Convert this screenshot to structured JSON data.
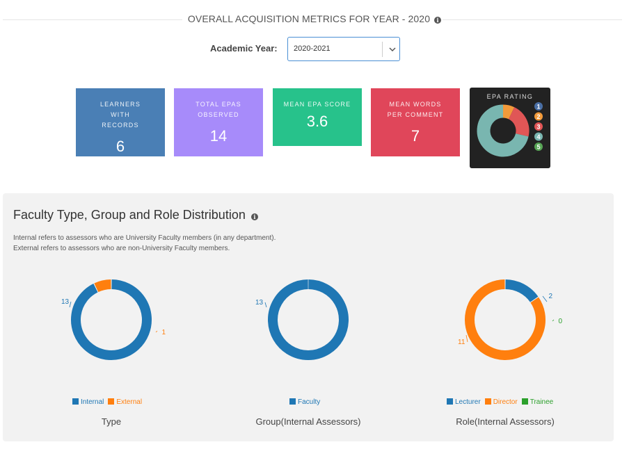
{
  "header": {
    "title": "OVERALL ACQUISITION METRICS FOR YEAR - 2020",
    "info_icon": "info-icon"
  },
  "year_selector": {
    "label": "Academic Year:",
    "value": "2020-2021"
  },
  "cards": [
    {
      "label": "LEARNERS WITH RECORDS",
      "value": "6",
      "color": "#4a7fb5"
    },
    {
      "label": "TOTAL EPAS OBSERVED",
      "value": "14",
      "color": "#a78bfa"
    },
    {
      "label": "MEAN EPA SCORE",
      "value": "3.6",
      "color": "#27c28b"
    },
    {
      "label": "MEAN WORDS PER COMMENT",
      "value": "7",
      "color": "#e0465a"
    }
  ],
  "epa_rating": {
    "title": "EPA RATING",
    "legend": [
      {
        "label": "1",
        "color": "#4a6fa5"
      },
      {
        "label": "2",
        "color": "#f29a3a"
      },
      {
        "label": "3",
        "color": "#e05656"
      },
      {
        "label": "4",
        "color": "#79b6b0"
      },
      {
        "label": "5",
        "color": "#58a556"
      }
    ],
    "chart_data": {
      "type": "pie",
      "categories": [
        "1",
        "2",
        "3",
        "4",
        "5"
      ],
      "values": [
        0,
        1,
        3,
        10,
        0
      ]
    }
  },
  "distribution": {
    "title": "Faculty Type, Group and Role Distribution",
    "desc_line1": "Internal refers to assessors who are University Faculty members (in any department).",
    "desc_line2": "External refers to assessors who are non-University Faculty members."
  },
  "chart_data": [
    {
      "type": "pie",
      "caption": "Type",
      "categories": [
        "Internal",
        "External"
      ],
      "values": [
        13,
        1
      ],
      "colors": [
        "#1f77b4",
        "#ff7f0e"
      ]
    },
    {
      "type": "pie",
      "caption": "Group(Internal Assessors)",
      "categories": [
        "Faculty"
      ],
      "values": [
        13
      ],
      "colors": [
        "#1f77b4"
      ]
    },
    {
      "type": "pie",
      "caption": "Role(Internal Assessors)",
      "categories": [
        "Lecturer",
        "Director",
        "Trainee"
      ],
      "values": [
        2,
        11,
        0
      ],
      "colors": [
        "#1f77b4",
        "#ff7f0e",
        "#2ca02c"
      ]
    }
  ]
}
